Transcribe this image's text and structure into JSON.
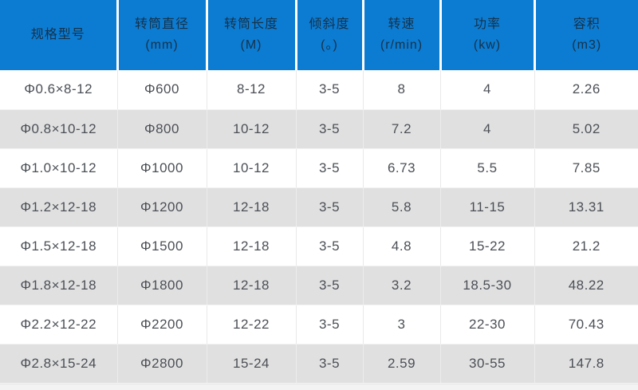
{
  "colors": {
    "header_bg": "#0c7cd2",
    "header_text": "#16324a",
    "row_bg": "#ffffff",
    "row_alt_bg": "#e0e0e0",
    "cell_text": "#4b4f55",
    "grid_line": "#e9e9e9"
  },
  "chart_data": {
    "type": "table",
    "title": "",
    "columns": [
      {
        "title": "规格型号",
        "unit": ""
      },
      {
        "title": "转筒直径",
        "unit": "(mm)"
      },
      {
        "title": "转筒长度",
        "unit": "(M)"
      },
      {
        "title": "倾斜度",
        "unit": "(。)"
      },
      {
        "title": "转速",
        "unit": "(r/min)"
      },
      {
        "title": "功率",
        "unit": "(kw)"
      },
      {
        "title": "容积",
        "unit": "(m3)"
      }
    ],
    "rows": [
      [
        "Φ0.6×8-12",
        "Φ600",
        "8-12",
        "3-5",
        "8",
        "4",
        "2.26"
      ],
      [
        "Φ0.8×10-12",
        "Φ800",
        "10-12",
        "3-5",
        "7.2",
        "4",
        "5.02"
      ],
      [
        "Φ1.0×10-12",
        "Φ1000",
        "10-12",
        "3-5",
        "6.73",
        "5.5",
        "7.85"
      ],
      [
        "Φ1.2×12-18",
        "Φ1200",
        "12-18",
        "3-5",
        "5.8",
        "11-15",
        "13.31"
      ],
      [
        "Φ1.5×12-18",
        "Φ1500",
        "12-18",
        "3-5",
        "4.8",
        "15-22",
        "21.2"
      ],
      [
        "Φ1.8×12-18",
        "Φ1800",
        "12-18",
        "3-5",
        "3.2",
        "18.5-30",
        "48.22"
      ],
      [
        "Φ2.2×12-22",
        "Φ2200",
        "12-22",
        "3-5",
        "3",
        "22-30",
        "70.43"
      ],
      [
        "Φ2.8×15-24",
        "Φ2800",
        "15-24",
        "3-5",
        "2.59",
        "30-55",
        "147.8"
      ]
    ]
  }
}
